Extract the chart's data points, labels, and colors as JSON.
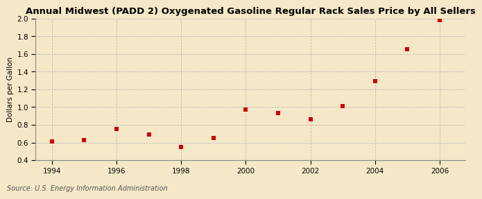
{
  "title": "Annual Midwest (PADD 2) Oxygenated Gasoline Regular Rack Sales Price by All Sellers",
  "ylabel": "Dollars per Gallon",
  "source": "Source: U.S. Energy Information Administration",
  "background_color": "#f5e8c8",
  "plot_bg_color": "#fdfaf0",
  "x_values": [
    1994,
    1995,
    1996,
    1997,
    1998,
    1999,
    2000,
    2001,
    2002,
    2003,
    2004,
    2005,
    2006
  ],
  "y_values": [
    0.61,
    0.63,
    0.75,
    0.69,
    0.55,
    0.65,
    0.97,
    0.93,
    0.86,
    1.01,
    1.29,
    1.65,
    1.98
  ],
  "marker_color": "#cc0000",
  "marker_size": 4,
  "xlim": [
    1993.5,
    2006.8
  ],
  "ylim": [
    0.4,
    2.0
  ],
  "xticks": [
    1994,
    1996,
    1998,
    2000,
    2002,
    2004,
    2006
  ],
  "yticks": [
    0.4,
    0.6,
    0.8,
    1.0,
    1.2,
    1.4,
    1.6,
    1.8,
    2.0
  ],
  "grid_color": "#bbbbbb",
  "title_fontsize": 9.5,
  "axis_fontsize": 7.5,
  "source_fontsize": 7,
  "ylabel_fontsize": 7.5
}
